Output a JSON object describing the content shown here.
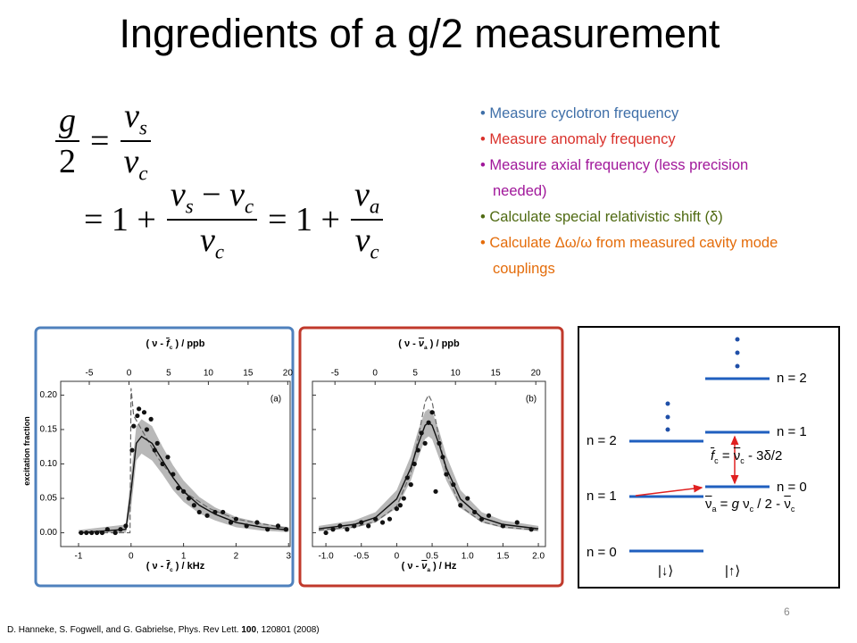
{
  "title": "Ingredients of a g/2 measurement",
  "equation": {
    "row1": [
      "g",
      "2",
      "=",
      "ν",
      "s",
      "ν",
      "c"
    ],
    "row2": [
      "= 1 +",
      "ν",
      "s",
      "−",
      "ν",
      "c",
      "ν",
      "c",
      "= 1 +",
      "ν",
      "a",
      "ν",
      "c"
    ]
  },
  "bullets": [
    {
      "text": "Measure cyclotron frequency",
      "color": "#3f6fa8"
    },
    {
      "text": "Measure anomaly frequency",
      "color": "#d9312b"
    },
    {
      "text": "Measure axial frequency (less precision needed)",
      "color": "#a0179a"
    },
    {
      "text": "Calculate special relativistic shift (δ)",
      "color": "#4f6a12"
    },
    {
      "text": "Calculate Δω/ω  from measured cavity mode couplings",
      "color": "#e46c0a"
    }
  ],
  "plots": [
    {
      "frame_color": "#4f81bd",
      "tag": "(a)",
      "ylabel": "excitation fraction",
      "xlabel": [
        "( ν - ",
        "f",
        "c",
        " ) / kHz"
      ],
      "toplabel": [
        "( ν - ",
        "f",
        "c",
        " ) / ppb"
      ],
      "xlim": [
        -1.34,
        3.03
      ],
      "xticks": [
        -1,
        0,
        1,
        2,
        3
      ],
      "x2lim": [
        -8.6,
        20.3
      ],
      "x2ticks": [
        -5,
        0,
        5,
        10,
        15,
        20
      ],
      "ylim": [
        -0.02,
        0.22
      ],
      "yticks": [
        {
          "value": 0,
          "label": "0.00"
        },
        {
          "value": 0.05,
          "label": "0.05"
        },
        {
          "value": 0.1,
          "label": "0.10"
        },
        {
          "value": 0.15,
          "label": "0.15"
        },
        {
          "value": 0.2,
          "label": "0.20"
        }
      ],
      "points_x": [
        -0.95,
        -0.85,
        -0.75,
        -0.65,
        -0.55,
        -0.45,
        -0.3,
        -0.2,
        -0.1,
        0.02,
        0.05,
        0.12,
        0.15,
        0.25,
        0.3,
        0.38,
        0.45,
        0.5,
        0.6,
        0.7,
        0.8,
        0.9,
        1.0,
        1.1,
        1.2,
        1.3,
        1.45,
        1.6,
        1.75,
        1.9,
        2.0,
        2.2,
        2.4,
        2.6,
        2.8,
        2.95
      ],
      "points_y": [
        0,
        0,
        0,
        0,
        0,
        0.005,
        0,
        0.005,
        0.01,
        0.12,
        0.155,
        0.17,
        0.18,
        0.175,
        0.15,
        0.165,
        0.12,
        0.13,
        0.1,
        0.11,
        0.085,
        0.065,
        0.06,
        0.05,
        0.04,
        0.03,
        0.025,
        0.03,
        0.03,
        0.015,
        0.02,
        0.01,
        0.015,
        0.005,
        0.01,
        0.005
      ],
      "fit_x": [
        -1,
        -0.1,
        0,
        0.1,
        0.2,
        0.4,
        0.6,
        0.8,
        1.0,
        1.3,
        1.6,
        2.0,
        2.5,
        3.0
      ],
      "fit_y": [
        0,
        0.005,
        0.06,
        0.13,
        0.14,
        0.13,
        0.105,
        0.08,
        0.06,
        0.04,
        0.027,
        0.015,
        0.008,
        0.004
      ],
      "band_upper": [
        0.004,
        0.012,
        0.085,
        0.155,
        0.165,
        0.155,
        0.125,
        0.098,
        0.076,
        0.052,
        0.037,
        0.023,
        0.014,
        0.008
      ],
      "band_lower": [
        0,
        0,
        0.035,
        0.105,
        0.115,
        0.105,
        0.085,
        0.062,
        0.045,
        0.028,
        0.018,
        0.008,
        0.003,
        0.001
      ],
      "dashed_x": [
        -1,
        -0.02,
        0,
        0.05,
        0.2,
        0.5,
        1,
        1.5,
        2,
        3
      ],
      "dashed_y": [
        0,
        0,
        0.21,
        0.17,
        0.15,
        0.11,
        0.06,
        0.035,
        0.02,
        0.006
      ]
    },
    {
      "frame_color": "#c0392b",
      "tag": "(b)",
      "ytick_labels": false,
      "xlabel": [
        "( ν - ",
        "ν",
        "a",
        " ) / Hz"
      ],
      "toplabel": [
        "( ν - ",
        "ν",
        "a",
        " ) / ppb"
      ],
      "xlim": [
        -1.19,
        2.1
      ],
      "xticks": [
        {
          "value": -1,
          "label": "-1.0"
        },
        -0.5,
        0,
        0.5,
        {
          "value": 1,
          "label": "1.0"
        },
        1.5,
        {
          "value": 2,
          "label": "2.0"
        }
      ],
      "x2lim": [
        -7.8,
        21.2
      ],
      "x2ticks": [
        -5,
        0,
        5,
        10,
        15,
        20
      ],
      "ylim": [
        -0.02,
        0.22
      ],
      "yticks": [
        0,
        0.05,
        0.1,
        0.15,
        0.2
      ],
      "points_x": [
        -1,
        -0.9,
        -0.8,
        -0.7,
        -0.6,
        -0.5,
        -0.4,
        -0.3,
        -0.2,
        -0.1,
        0,
        0.05,
        0.1,
        0.15,
        0.2,
        0.25,
        0.3,
        0.35,
        0.4,
        0.45,
        0.5,
        0.55,
        0.6,
        0.65,
        0.7,
        0.8,
        0.9,
        1.0,
        1.1,
        1.2,
        1.3,
        1.5,
        1.7,
        1.9
      ],
      "points_y": [
        0,
        0.005,
        0.01,
        0.005,
        0.01,
        0.015,
        0.01,
        0.02,
        0.015,
        0.02,
        0.035,
        0.04,
        0.05,
        0.08,
        0.07,
        0.1,
        0.12,
        0.145,
        0.13,
        0.16,
        0.175,
        0.06,
        0.13,
        0.11,
        0.085,
        0.07,
        0.04,
        0.05,
        0.03,
        0.02,
        0.025,
        0.01,
        0.015,
        0.005
      ],
      "fit_x": [
        -1.1,
        -0.6,
        -0.3,
        0,
        0.2,
        0.3,
        0.4,
        0.45,
        0.5,
        0.6,
        0.7,
        0.9,
        1.2,
        1.5,
        2.0
      ],
      "fit_y": [
        0.0058,
        0.0121,
        0.0221,
        0.0492,
        0.0944,
        0.128,
        0.156,
        0.16,
        0.156,
        0.128,
        0.094,
        0.049,
        0.022,
        0.0121,
        0.0058
      ],
      "band_upper": [
        0.01,
        0.018,
        0.03,
        0.062,
        0.112,
        0.148,
        0.176,
        0.18,
        0.176,
        0.148,
        0.112,
        0.062,
        0.03,
        0.018,
        0.01
      ],
      "band_lower": [
        0.002,
        0.007,
        0.015,
        0.036,
        0.076,
        0.108,
        0.136,
        0.14,
        0.136,
        0.108,
        0.076,
        0.036,
        0.015,
        0.007,
        0.002
      ],
      "dashed_x": [
        -1.1,
        -0.6,
        -0.3,
        0,
        0.2,
        0.3,
        0.4,
        0.45,
        0.5,
        0.6,
        0.7,
        0.9,
        1.2,
        1.5,
        2.0
      ],
      "dashed_y": [
        0.0039,
        0.0084,
        0.0159,
        0.0386,
        0.0873,
        0.1365,
        0.19,
        0.2,
        0.19,
        0.1365,
        0.0873,
        0.0386,
        0.0159,
        0.0084,
        0.0039
      ]
    }
  ],
  "diagram": {
    "left_levels": [
      "n = 2",
      "n = 1",
      "n = 0"
    ],
    "right_levels": [
      "n = 2",
      "n = 1",
      "n = 0"
    ],
    "kets": [
      "|↓⟩",
      "|↑⟩"
    ],
    "fc_eq": [
      "f",
      "c",
      " = ",
      "ν",
      "c",
      " - 3δ/2"
    ],
    "nua_eq": [
      "ν",
      "a",
      " = ",
      "g",
      " ν",
      "c",
      " / 2 - ",
      "ν",
      "c"
    ]
  },
  "page_number": "6",
  "citation": [
    "D. Hanneke, S. Fogwell, and G. Gabrielse, Phys. Rev Lett. ",
    "100",
    ", 120801 (2008)"
  ]
}
